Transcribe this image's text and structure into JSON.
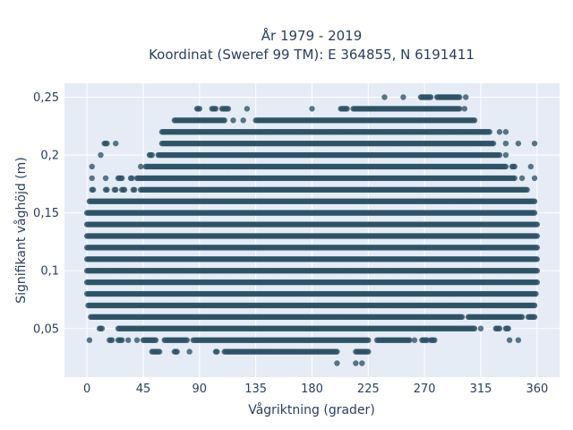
{
  "chart_data": {
    "type": "scatter",
    "title_lines": [
      "År 1979 - 2019",
      "Koordinat (Sweref 99 TM): E 364855, N 6191411"
    ],
    "xlabel": "Vågriktning (grader)",
    "ylabel": "Signifikant våghöjd (m)",
    "xlim": [
      -18,
      378
    ],
    "ylim": [
      0.008,
      0.262
    ],
    "x_ticks": [
      0,
      45,
      90,
      135,
      180,
      225,
      270,
      315,
      360
    ],
    "x_tick_labels": [
      "0",
      "45",
      "90",
      "135",
      "180",
      "225",
      "270",
      "315",
      "360"
    ],
    "y_ticks": [
      0.05,
      0.1,
      0.15,
      0.2,
      0.25
    ],
    "y_tick_labels": [
      "0,05",
      "0,1",
      "0,15",
      "0,2",
      "0,25"
    ],
    "grid": true,
    "marker_color": "#2e5266",
    "background_color": "#e5ecf6",
    "rows": [
      {
        "y": 0.02,
        "segments": [
          [
            200,
            200
          ],
          [
            215,
            215
          ],
          [
            220,
            220
          ]
        ]
      },
      {
        "y": 0.03,
        "segments": [
          [
            52,
            58
          ],
          [
            70,
            72
          ],
          [
            82,
            82
          ],
          [
            103,
            104
          ],
          [
            110,
            200
          ],
          [
            215,
            225
          ]
        ]
      },
      {
        "y": 0.04,
        "segments": [
          [
            2,
            2
          ],
          [
            18,
            20
          ],
          [
            25,
            28
          ],
          [
            33,
            33
          ],
          [
            40,
            40
          ],
          [
            45,
            55
          ],
          [
            62,
            80
          ],
          [
            85,
            225
          ],
          [
            232,
            258
          ],
          [
            262,
            262
          ],
          [
            268,
            272
          ],
          [
            275,
            278
          ],
          [
            338,
            338
          ],
          [
            345,
            345
          ]
        ]
      },
      {
        "y": 0.05,
        "segments": [
          [
            10,
            12
          ],
          [
            25,
            310
          ],
          [
            315,
            315
          ],
          [
            327,
            330
          ],
          [
            335,
            337
          ]
        ]
      },
      {
        "y": 0.06,
        "segments": [
          [
            3,
            300
          ],
          [
            305,
            348
          ],
          [
            353,
            358
          ]
        ]
      },
      {
        "y": 0.07,
        "segments": [
          [
            1,
            358
          ]
        ]
      },
      {
        "y": 0.08,
        "segments": [
          [
            0,
            359
          ]
        ]
      },
      {
        "y": 0.09,
        "segments": [
          [
            0,
            360
          ]
        ]
      },
      {
        "y": 0.1,
        "segments": [
          [
            0,
            360
          ]
        ]
      },
      {
        "y": 0.11,
        "segments": [
          [
            0,
            360
          ]
        ]
      },
      {
        "y": 0.12,
        "segments": [
          [
            0,
            360
          ]
        ]
      },
      {
        "y": 0.13,
        "segments": [
          [
            0,
            360
          ]
        ]
      },
      {
        "y": 0.14,
        "segments": [
          [
            0,
            360
          ]
        ]
      },
      {
        "y": 0.15,
        "segments": [
          [
            0,
            358
          ]
        ]
      },
      {
        "y": 0.16,
        "segments": [
          [
            2,
            358
          ]
        ]
      },
      {
        "y": 0.17,
        "segments": [
          [
            4,
            5
          ],
          [
            15,
            16
          ],
          [
            22,
            23
          ],
          [
            28,
            30
          ],
          [
            37,
            38
          ],
          [
            43,
            352
          ]
        ]
      },
      {
        "y": 0.18,
        "segments": [
          [
            4,
            4
          ],
          [
            15,
            15
          ],
          [
            25,
            28
          ],
          [
            35,
            36
          ],
          [
            40,
            342
          ],
          [
            348,
            348
          ],
          [
            358,
            358
          ]
        ]
      },
      {
        "y": 0.19,
        "segments": [
          [
            4,
            4
          ],
          [
            43,
            43
          ],
          [
            47,
            335
          ],
          [
            340,
            342
          ],
          [
            355,
            355
          ]
        ]
      },
      {
        "y": 0.2,
        "segments": [
          [
            11,
            11
          ],
          [
            50,
            52
          ],
          [
            57,
            330
          ],
          [
            335,
            335
          ]
        ]
      },
      {
        "y": 0.21,
        "segments": [
          [
            14,
            16
          ],
          [
            23,
            23
          ],
          [
            60,
            325
          ],
          [
            335,
            335
          ],
          [
            345,
            345
          ],
          [
            358,
            358
          ]
        ]
      },
      {
        "y": 0.22,
        "segments": [
          [
            60,
            322
          ],
          [
            330,
            330
          ],
          [
            335,
            335
          ]
        ]
      },
      {
        "y": 0.23,
        "segments": [
          [
            70,
            110
          ],
          [
            117,
            117
          ],
          [
            125,
            125
          ],
          [
            135,
            310
          ]
        ]
      },
      {
        "y": 0.24,
        "segments": [
          [
            88,
            90
          ],
          [
            100,
            103
          ],
          [
            108,
            113
          ],
          [
            128,
            128
          ],
          [
            180,
            180
          ],
          [
            203,
            208
          ],
          [
            213,
            298
          ],
          [
            302,
            302
          ]
        ]
      },
      {
        "y": 0.25,
        "segments": [
          [
            238,
            238
          ],
          [
            253,
            253
          ],
          [
            267,
            275
          ],
          [
            280,
            298
          ],
          [
            303,
            303
          ]
        ]
      }
    ]
  }
}
